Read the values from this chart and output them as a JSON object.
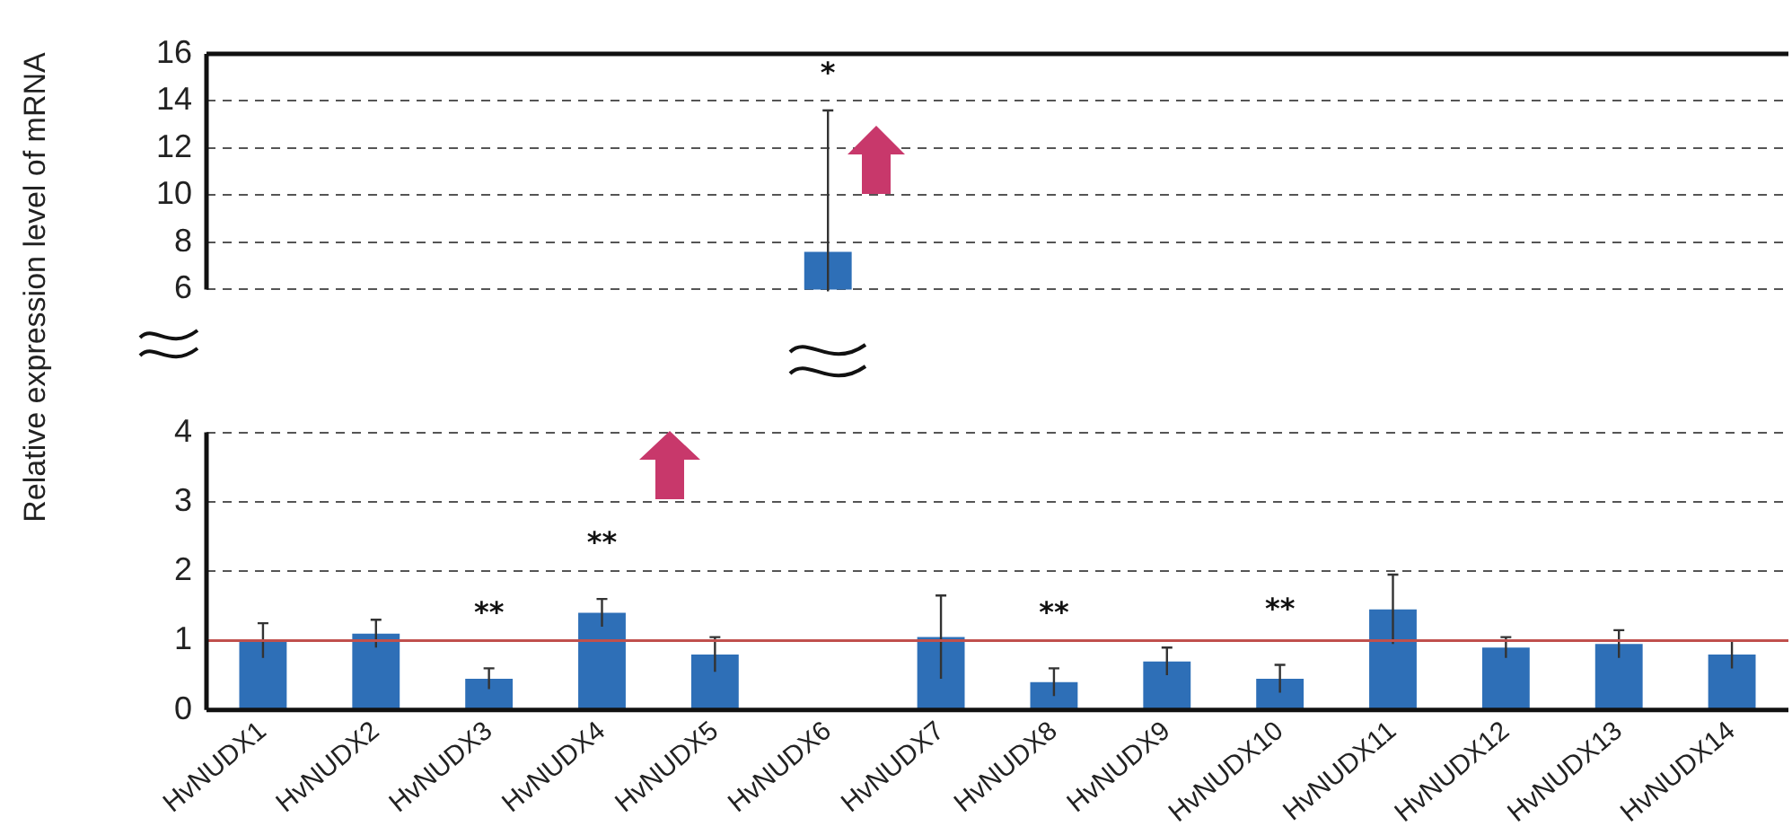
{
  "chart_data": [
    {
      "type": "bar",
      "ylabel": "Relative expression level of mRNA",
      "categories": [
        "HvNUDX1",
        "HvNUDX2",
        "HvNUDX3",
        "HvNUDX4",
        "HvNUDX5",
        "HvNUDX6",
        "HvNUDX7",
        "HvNUDX8",
        "HvNUDX9",
        "HvNUDX10",
        "HvNUDX11",
        "HvNUDX12",
        "HvNUDX13",
        "HvNUDX14"
      ],
      "series": [
        {
          "color": "#2e6fb7",
          "values": [
            null,
            null,
            null,
            null,
            null,
            7.6,
            null,
            null,
            null,
            null,
            null,
            null,
            null,
            null
          ],
          "errors": [
            null,
            null,
            null,
            null,
            null,
            6.0,
            null,
            null,
            null,
            null,
            null,
            null,
            null,
            null
          ]
        }
      ],
      "ylim": [
        6,
        16
      ],
      "yticks": [
        6,
        8,
        10,
        12,
        14,
        16
      ],
      "grid": "y",
      "tick_labels": "y",
      "legend": false,
      "annotations": [
        {
          "text": "*",
          "x": "HvNUDX6",
          "y": 13.6
        }
      ]
    },
    {
      "type": "bar",
      "categories": [
        "HvNUDX1",
        "HvNUDX2",
        "HvNUDX3",
        "HvNUDX4",
        "HvNUDX5",
        "HvNUDX6",
        "HvNUDX7",
        "HvNUDX8",
        "HvNUDX9",
        "HvNUDX10",
        "HvNUDX11",
        "HvNUDX12",
        "HvNUDX13",
        "HvNUDX14"
      ],
      "series": [
        {
          "color": "#2e6fb7",
          "values": [
            1.0,
            1.1,
            0.45,
            1.4,
            0.8,
            null,
            1.05,
            0.4,
            0.7,
            0.45,
            1.45,
            0.9,
            0.95,
            0.8
          ],
          "errors": [
            0.25,
            0.2,
            0.15,
            0.2,
            0.25,
            null,
            0.6,
            0.2,
            0.2,
            0.2,
            0.5,
            0.15,
            0.2,
            0.2
          ]
        }
      ],
      "ylim": [
        0,
        4
      ],
      "yticks": [
        0,
        1,
        2,
        3,
        4
      ],
      "grid": "y",
      "legend": false,
      "ref_lines": [
        {
          "axis": "y",
          "value": 1,
          "color": "#c0504d"
        }
      ],
      "annotations": [
        {
          "text": "**",
          "x": "HvNUDX3",
          "y": 0.6
        },
        {
          "text": "**",
          "x": "HvNUDX4",
          "y": 1.6
        },
        {
          "text": "**",
          "x": "HvNUDX8",
          "y": 0.6
        },
        {
          "text": "**",
          "x": "HvNUDX10",
          "y": 0.65
        }
      ]
    }
  ]
}
